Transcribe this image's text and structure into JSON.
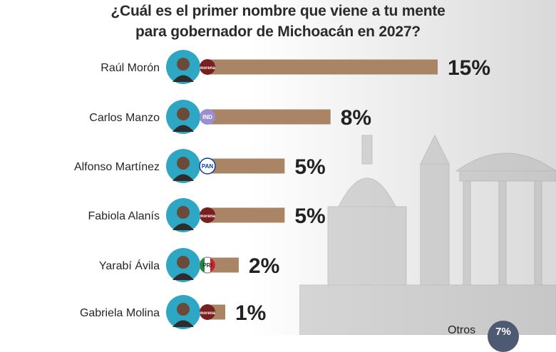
{
  "header": {
    "title_line1": "¿Cuál es el primer nombre que viene a tu mente",
    "title_line2": "para gobernador de Michoacán en 2027?"
  },
  "colors": {
    "bar": "#a98565",
    "avatar_ring": "#2ea7c4",
    "morena": "#7a1f1f",
    "ind": "#9a8fd0",
    "pan": "#0d3f9c",
    "pri_green": "#1b8a3c",
    "pri_red": "#d3202a"
  },
  "chart_data": {
    "type": "bar",
    "orientation": "horizontal",
    "title": "¿Cuál es el primer nombre que viene a tu mente para gobernador de Michoacán en 2027?",
    "categories": [
      "Raúl Morón",
      "Carlos Manzo",
      "Alfonso Martínez",
      "Fabiola Alanís",
      "Yarabí Ávila",
      "Gabriela Molina"
    ],
    "values": [
      15,
      8,
      5,
      5,
      2,
      1
    ],
    "value_labels": [
      "15%",
      "8%",
      "5%",
      "5%",
      "2%",
      "1%"
    ],
    "parties": [
      "morena",
      "IND",
      "PAN",
      "morena",
      "PRI",
      "morena"
    ],
    "party_labels": [
      "morena",
      "IND",
      "PAN",
      "morena",
      "PRI",
      "morena"
    ],
    "unit": "%",
    "others_label": "Otros",
    "others_value_label": "7%"
  }
}
